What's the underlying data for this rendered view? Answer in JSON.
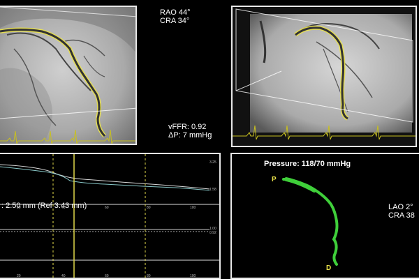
{
  "left_view": {
    "projection_line1": "RAO 44°",
    "projection_line2": "CRA 34°"
  },
  "result": {
    "vffr": "vFFR: 0.92",
    "delta_p": "ΔP: 7 mmHg"
  },
  "graph": {
    "diameter_label": ": 2.50 mm (Ref 3.43 mm)",
    "x_ticks": [
      "20",
      "40",
      "60",
      "80",
      "100"
    ],
    "top_labels": [
      "3.25",
      "1.58"
    ],
    "bottom_labels": [
      "1.00",
      "0.92"
    ]
  },
  "model": {
    "pressure": "Pressure: 118/70 mmHg",
    "proximal_marker": "P",
    "distal_marker": "D",
    "projection_line1": "LAO 2°",
    "projection_line2": "CRA 38"
  },
  "colors": {
    "vessel_outline": "#e9e14a",
    "model_vessel": "#3fcf3a",
    "ecg": "#c8c020",
    "graph_lines": "#d8d860"
  }
}
